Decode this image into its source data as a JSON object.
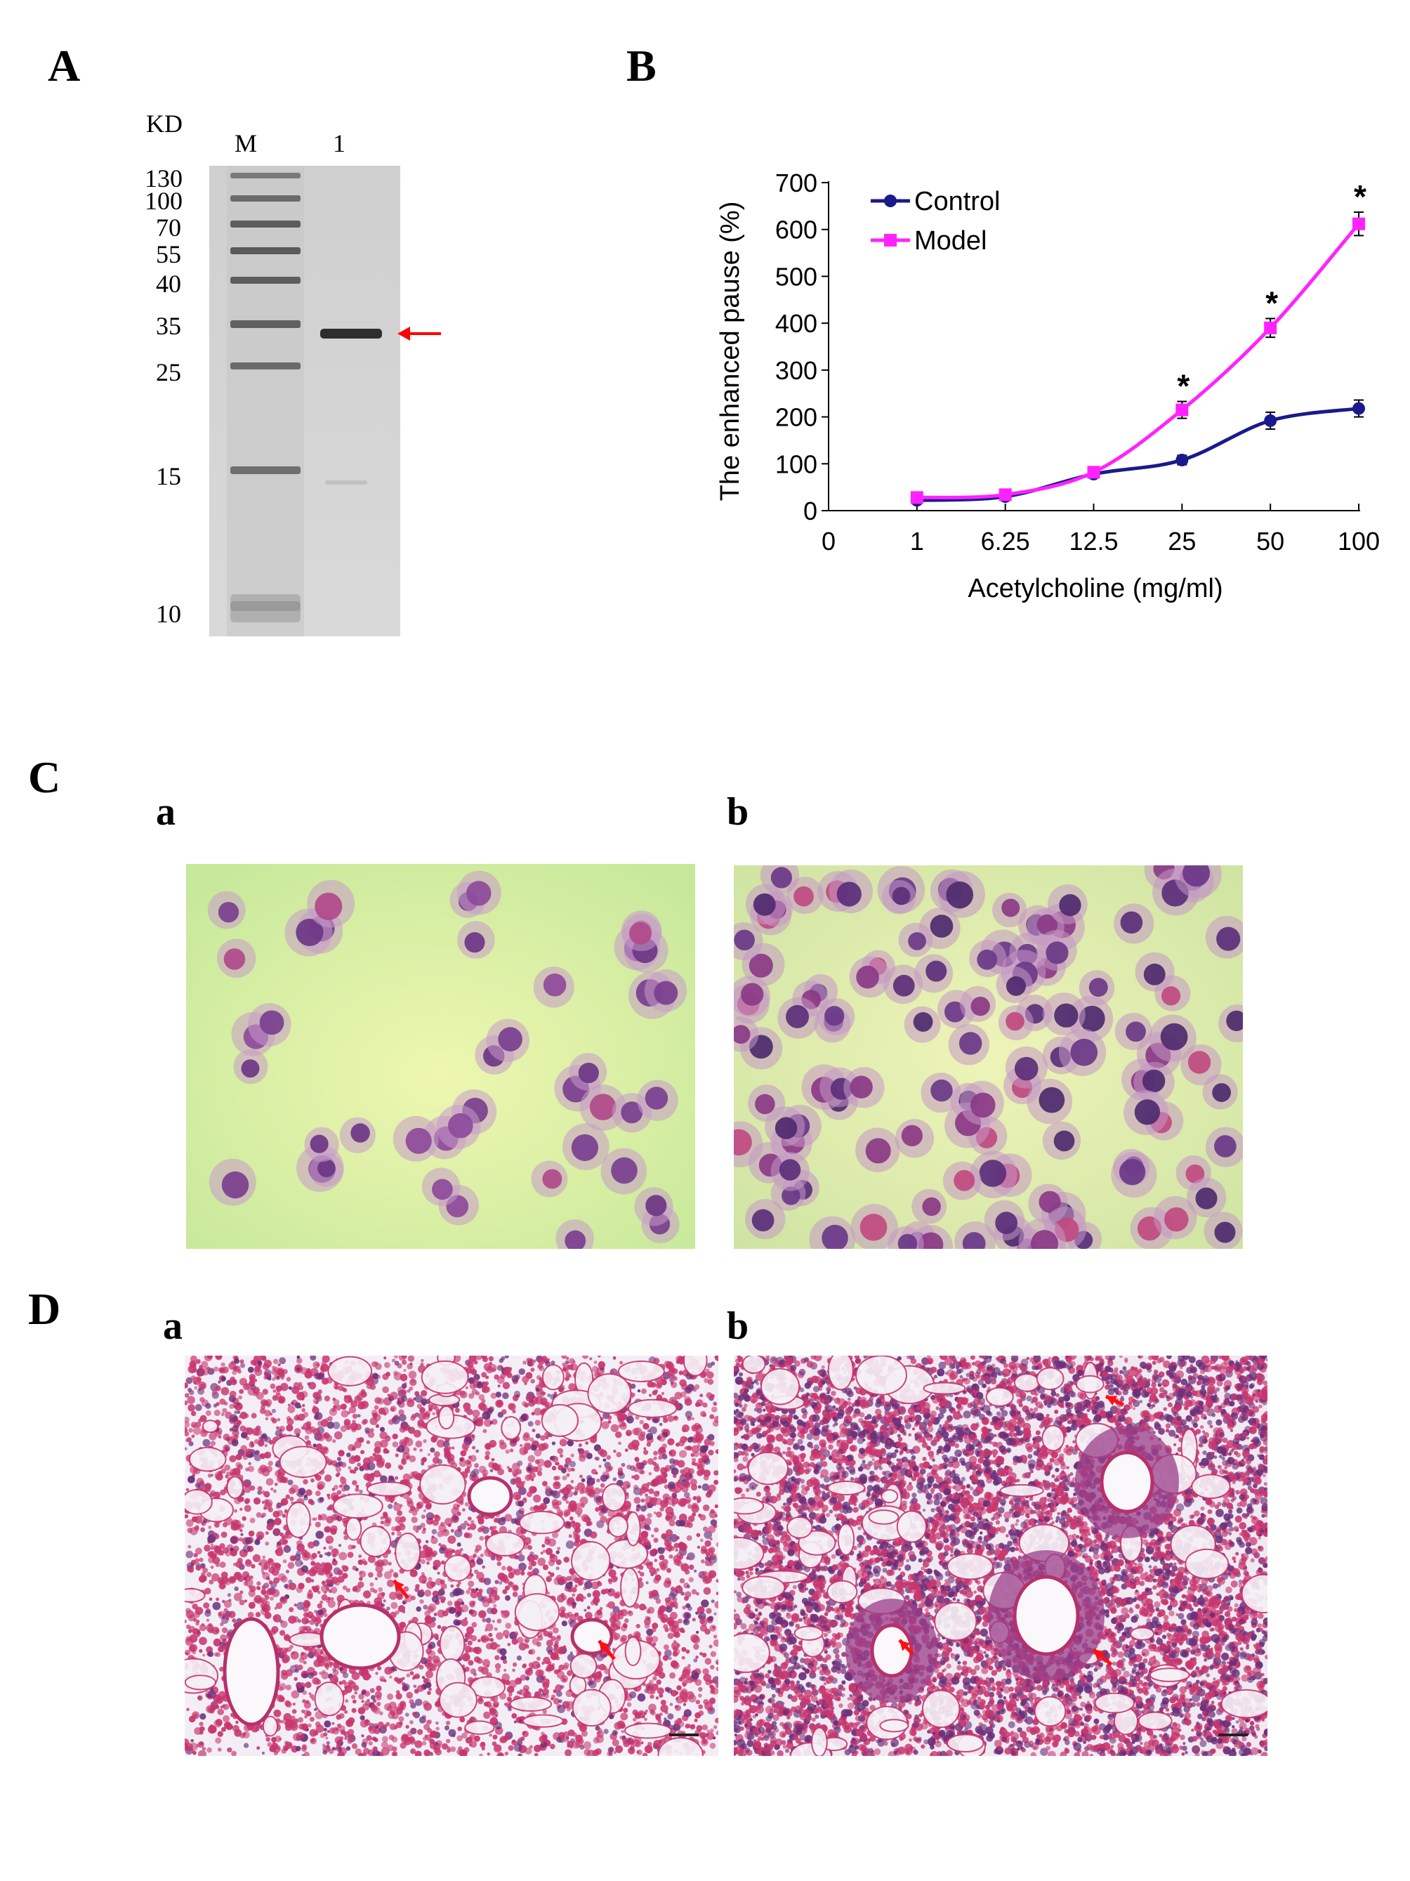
{
  "panels": {
    "A": {
      "letter": "A",
      "unit_label": "KD",
      "lane_labels": [
        "M",
        "1"
      ],
      "marker_sizes": [
        "130",
        "100",
        "70",
        "55",
        "40",
        "35",
        "25",
        "15",
        "10"
      ]
    },
    "B": {
      "letter": "B"
    },
    "C": {
      "letter": "C",
      "sub_a": "a",
      "sub_b": "b"
    },
    "D": {
      "letter": "D",
      "sub_a": "a",
      "sub_b": "b"
    }
  },
  "chart_data": {
    "type": "line",
    "categories": [
      "1",
      "6.25",
      "12.5",
      "25",
      "50",
      "100"
    ],
    "x_zero_label": "0",
    "xlabel": "Acetylcholine (mg/ml)",
    "ylabel": "The enhanced pause (%)",
    "ylim": [
      0,
      700
    ],
    "yticks": [
      0,
      100,
      200,
      300,
      400,
      500,
      600,
      700
    ],
    "grid": false,
    "legend_position": "top-left",
    "series": [
      {
        "name": "Control",
        "color": "#1a1a8c",
        "marker": "circle",
        "values": [
          22,
          30,
          78,
          108,
          192,
          218
        ],
        "errors": [
          6,
          6,
          8,
          10,
          18,
          18
        ]
      },
      {
        "name": "Model",
        "color": "#ff22ff",
        "marker": "square",
        "values": [
          28,
          34,
          82,
          215,
          390,
          612
        ],
        "errors": [
          6,
          6,
          8,
          18,
          20,
          25
        ]
      }
    ],
    "significance": [
      {
        "category": "25",
        "label": "*"
      },
      {
        "category": "50",
        "label": "*"
      },
      {
        "category": "100",
        "label": "*"
      }
    ]
  }
}
